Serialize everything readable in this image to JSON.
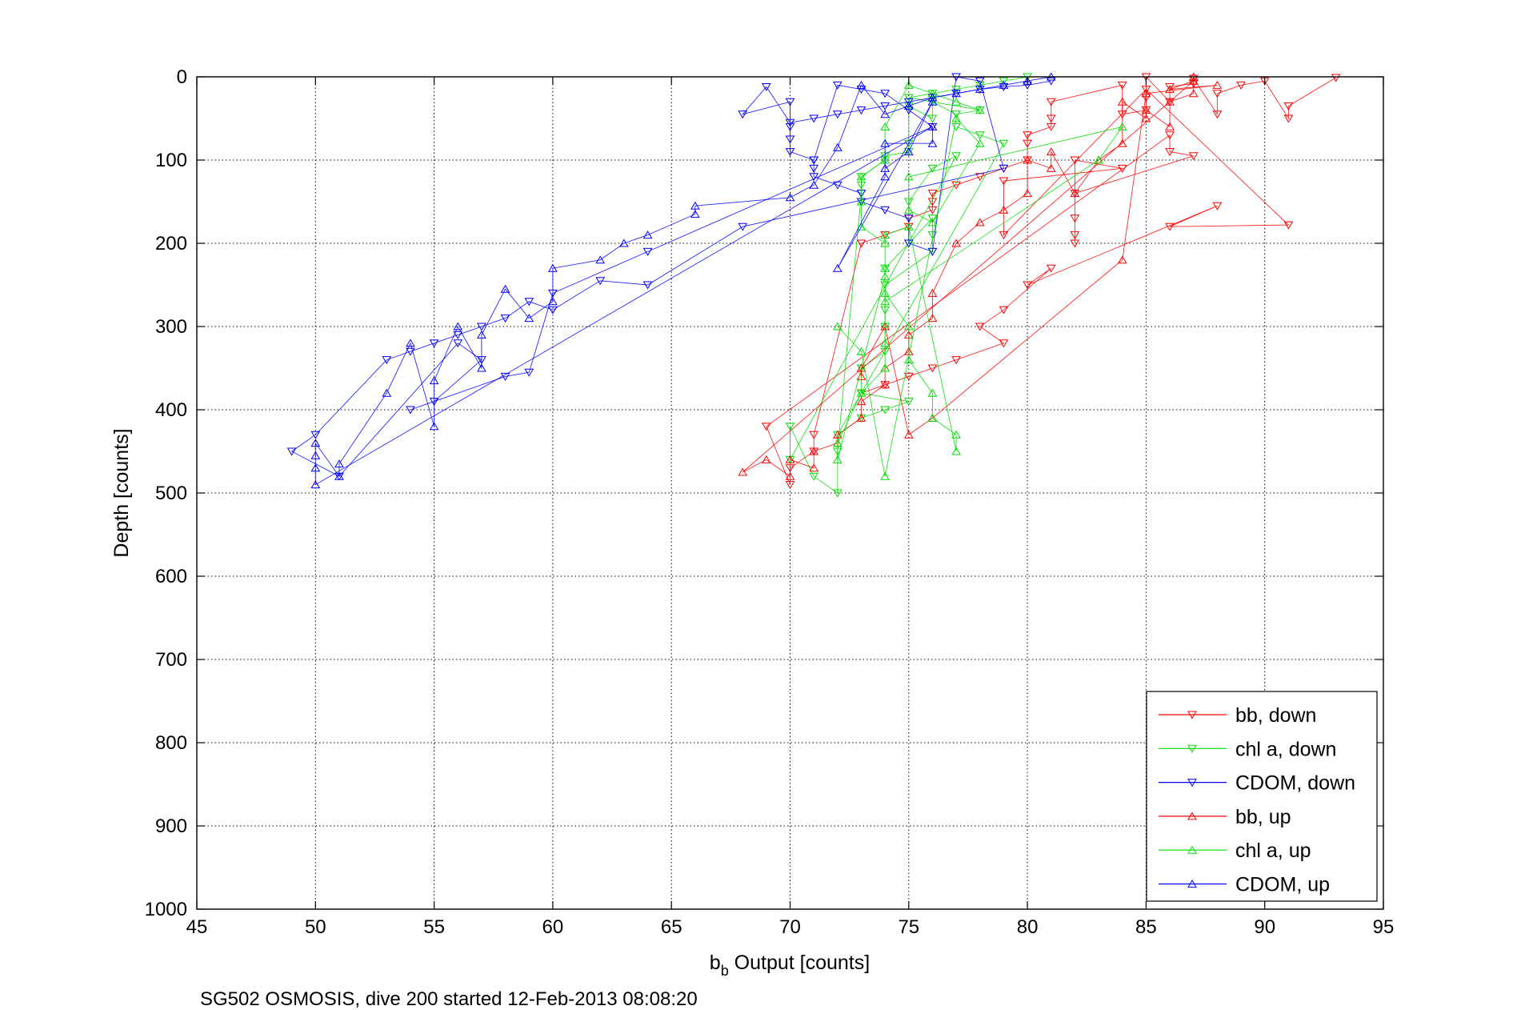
{
  "chart_data": {
    "type": "scatter",
    "xlabel_main": "b",
    "xlabel_sub": "b",
    "xlabel_rest": " Output [counts]",
    "ylabel": "Depth [counts]",
    "caption": "SG502 OSMOSIS, dive 200 started 12-Feb-2013 08:08:20",
    "xlim": [
      45,
      95
    ],
    "ylim": [
      0,
      1000
    ],
    "y_reversed": true,
    "grid": true,
    "legend_position": "bottom-right",
    "x_ticks": [
      "45",
      "50",
      "55",
      "60",
      "65",
      "70",
      "75",
      "80",
      "85",
      "90",
      "95"
    ],
    "y_ticks": [
      "0",
      "100",
      "200",
      "300",
      "400",
      "500",
      "600",
      "700",
      "800",
      "900",
      "1000"
    ],
    "colors": {
      "bb": "#ff0000",
      "chl": "#00dd00",
      "cdom": "#0000ff"
    },
    "series": [
      {
        "name": "bb, down",
        "color": "#ff0000",
        "marker": "triangle-down",
        "x": [
          93,
          91,
          91,
          90,
          89,
          88,
          88,
          87,
          87,
          86,
          86,
          85,
          85,
          85,
          84,
          84,
          81,
          81,
          81,
          80,
          80,
          80,
          79,
          78,
          77,
          76,
          76,
          76,
          75,
          75,
          74,
          73,
          71,
          71,
          70,
          70,
          69,
          86,
          86,
          87,
          82,
          82,
          82,
          82,
          82,
          84,
          79,
          79,
          85,
          91,
          86,
          88,
          80,
          81,
          79,
          78,
          79,
          77,
          76,
          75,
          74,
          73
        ],
        "y": [
          1,
          35,
          50,
          5,
          10,
          20,
          45,
          2,
          8,
          12,
          30,
          0,
          25,
          40,
          45,
          10,
          30,
          50,
          60,
          70,
          80,
          100,
          110,
          120,
          130,
          140,
          150,
          160,
          170,
          180,
          190,
          200,
          430,
          450,
          470,
          490,
          420,
          70,
          90,
          95,
          140,
          170,
          190,
          200,
          100,
          110,
          125,
          190,
          15,
          178,
          180,
          155,
          250,
          230,
          280,
          300,
          320,
          340,
          350,
          360,
          370,
          380
        ],
        "lines": true
      },
      {
        "name": "chl a, down",
        "color": "#00dd00",
        "marker": "triangle-down",
        "x": [
          80,
          79,
          78,
          77,
          76,
          75,
          78,
          77,
          76,
          76,
          75,
          75,
          75,
          74,
          74,
          73,
          73,
          73,
          72,
          72,
          71,
          70,
          70,
          77,
          76,
          75,
          75,
          74,
          76,
          76,
          76,
          74,
          74,
          74,
          74,
          73,
          73,
          75,
          74,
          73,
          72,
          79,
          78,
          77
        ],
        "y": [
          0,
          5,
          10,
          15,
          20,
          25,
          40,
          45,
          30,
          50,
          35,
          80,
          90,
          95,
          100,
          120,
          130,
          140,
          450,
          500,
          480,
          420,
          460,
          95,
          110,
          150,
          200,
          230,
          170,
          190,
          210,
          250,
          280,
          300,
          330,
          350,
          380,
          390,
          400,
          410,
          430,
          80,
          70,
          60
        ],
        "lines": true
      },
      {
        "name": "CDOM, down",
        "color": "#0000ff",
        "marker": "triangle-down",
        "x": [
          81,
          80,
          79,
          78,
          77,
          76,
          75,
          74,
          73,
          72,
          71,
          70,
          69,
          68,
          70,
          70,
          70,
          70,
          71,
          71,
          71,
          72,
          73,
          73,
          74,
          75,
          75,
          76,
          77,
          78,
          79,
          68,
          64,
          62,
          60,
          59,
          58,
          57,
          56,
          55,
          54,
          53,
          50,
          49,
          51,
          56,
          57,
          55,
          54,
          58,
          59,
          60,
          64,
          76,
          75,
          74,
          73,
          72,
          71
        ],
        "y": [
          5,
          10,
          12,
          15,
          20,
          25,
          30,
          35,
          40,
          45,
          50,
          55,
          12,
          45,
          30,
          60,
          75,
          90,
          100,
          110,
          120,
          130,
          140,
          150,
          160,
          170,
          200,
          210,
          0,
          5,
          110,
          180,
          250,
          245,
          280,
          270,
          290,
          300,
          310,
          320,
          330,
          340,
          430,
          450,
          480,
          320,
          340,
          390,
          400,
          360,
          355,
          260,
          210,
          60,
          40,
          20,
          15,
          10,
          100
        ],
        "lines": true
      },
      {
        "name": "bb, up",
        "color": "#ff0000",
        "marker": "triangle-up",
        "x": [
          87,
          87,
          86,
          86,
          85,
          85,
          84,
          84,
          83,
          82,
          81,
          81,
          80,
          80,
          79,
          78,
          77,
          76,
          76,
          75,
          75,
          74,
          74,
          73,
          73,
          72,
          72,
          71,
          71,
          70,
          70,
          69,
          68,
          87,
          86,
          88,
          85,
          84,
          76,
          75,
          74,
          73,
          73
        ],
        "y": [
          0,
          20,
          30,
          60,
          40,
          50,
          30,
          80,
          100,
          140,
          90,
          110,
          100,
          140,
          160,
          175,
          200,
          260,
          290,
          310,
          330,
          350,
          370,
          390,
          410,
          430,
          440,
          450,
          470,
          460,
          480,
          460,
          475,
          5,
          15,
          10,
          20,
          220,
          410,
          430,
          300,
          350,
          360
        ],
        "lines": true
      },
      {
        "name": "chl a, up",
        "color": "#00dd00",
        "marker": "triangle-up",
        "x": [
          78,
          77,
          76,
          75,
          74,
          74,
          73,
          73,
          73,
          74,
          74,
          74,
          75,
          75,
          76,
          76,
          77,
          77,
          75,
          74,
          74,
          74,
          73,
          72,
          72,
          74,
          74,
          83,
          84,
          75,
          75,
          76,
          78,
          77,
          74,
          73,
          72
        ],
        "y": [
          40,
          30,
          20,
          10,
          60,
          100,
          120,
          150,
          180,
          200,
          230,
          260,
          300,
          340,
          380,
          410,
          430,
          450,
          180,
          190,
          320,
          350,
          380,
          440,
          460,
          240,
          270,
          100,
          60,
          120,
          160,
          175,
          80,
          50,
          480,
          330,
          300
        ],
        "lines": true
      },
      {
        "name": "CDOM, up",
        "color": "#0000ff",
        "marker": "triangle-up",
        "x": [
          81,
          80,
          79,
          78,
          77,
          76,
          75,
          74,
          73,
          72,
          71,
          70,
          66,
          66,
          64,
          63,
          62,
          60,
          60,
          59,
          58,
          57,
          57,
          56,
          55,
          55,
          54,
          53,
          51,
          51,
          50,
          50,
          50,
          50,
          76,
          76,
          74,
          74,
          72,
          76,
          75,
          74
        ],
        "y": [
          0,
          5,
          10,
          15,
          20,
          25,
          35,
          45,
          10,
          85,
          130,
          145,
          155,
          165,
          190,
          200,
          220,
          230,
          270,
          290,
          255,
          310,
          350,
          300,
          365,
          420,
          320,
          380,
          465,
          480,
          440,
          455,
          470,
          490,
          60,
          80,
          80,
          120,
          230,
          30,
          90,
          110
        ],
        "lines": true
      }
    ]
  }
}
